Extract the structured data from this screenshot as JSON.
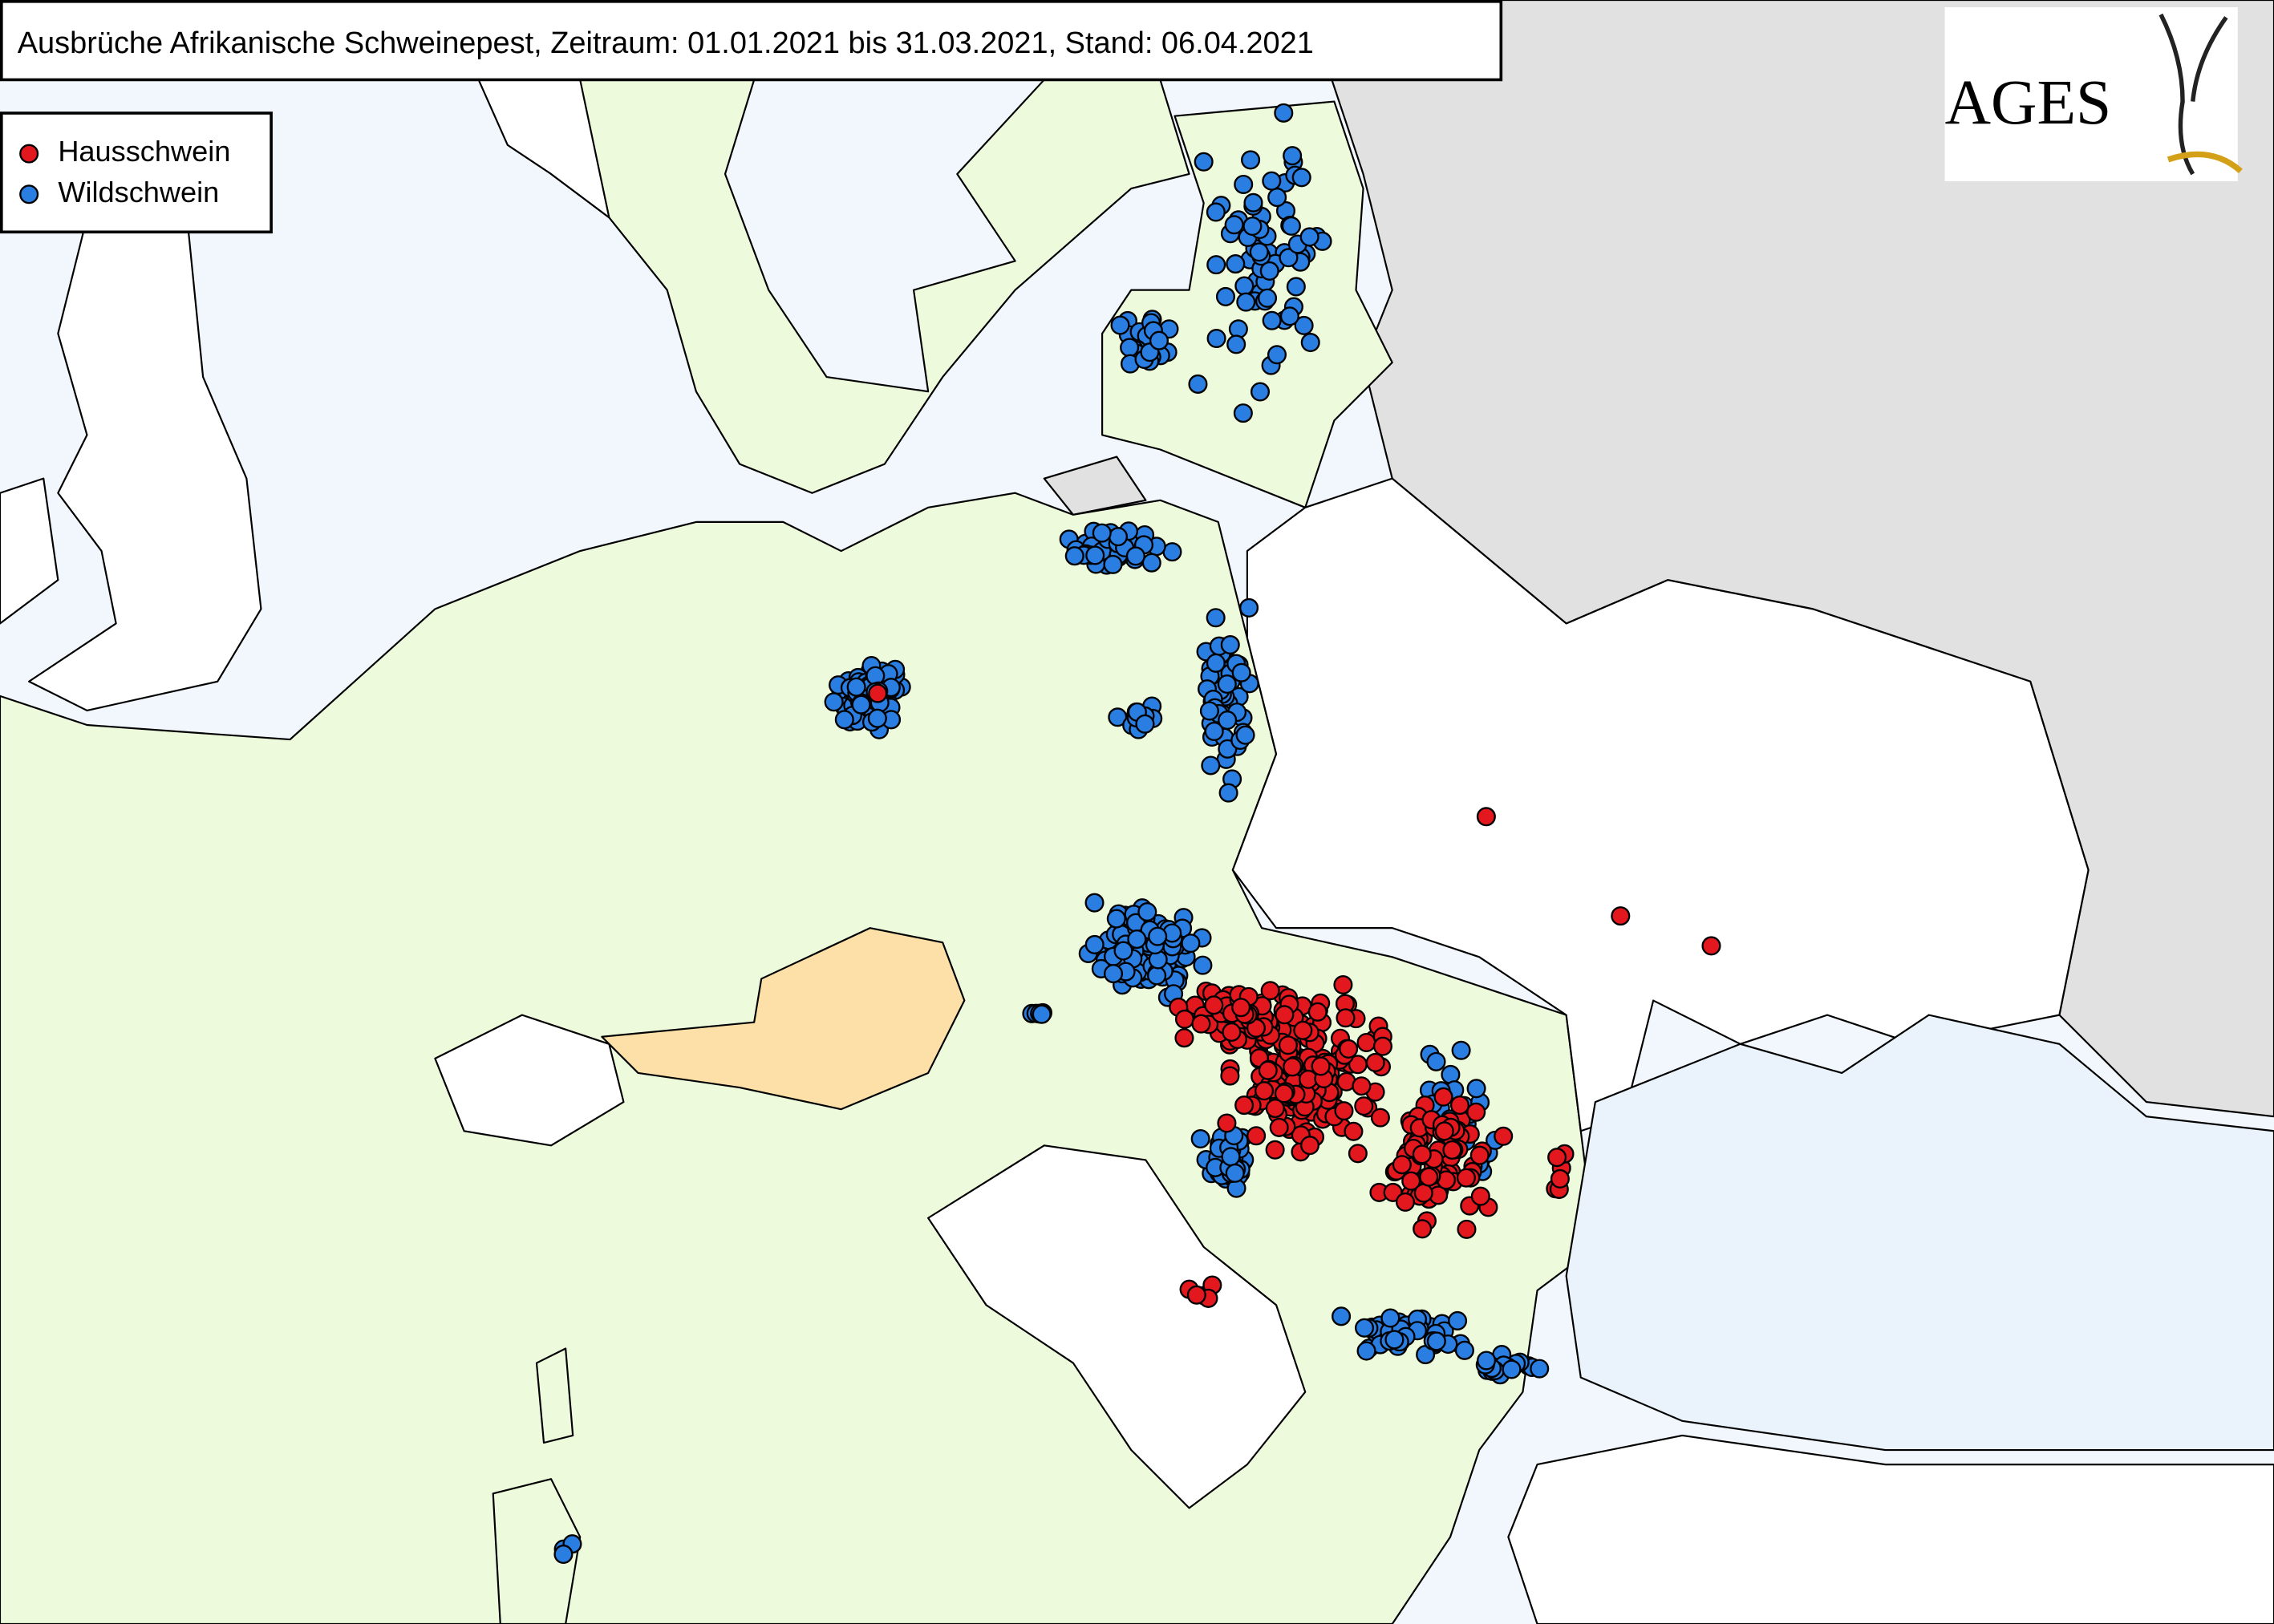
{
  "header": {
    "title": "Ausbrüche Afrikanische Schweinepest, Zeitraum: 01.01.2021 bis 31.03.2021, Stand: 06.04.2021"
  },
  "legend": {
    "items": [
      {
        "label": "Hausschwein",
        "color": "#e3181f"
      },
      {
        "label": "Wildschwein",
        "color": "#2a7de1"
      }
    ]
  },
  "logo": {
    "text": "AGES"
  }
}
